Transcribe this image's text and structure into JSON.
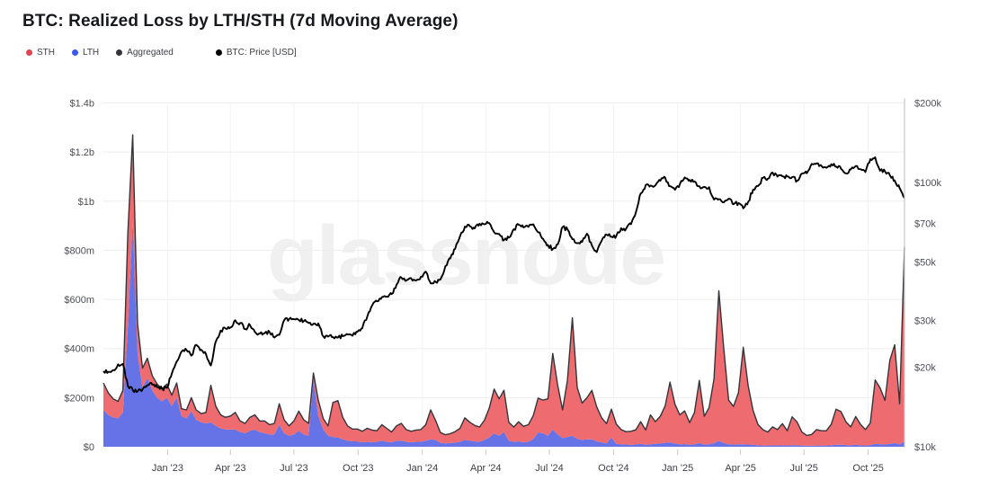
{
  "title": "BTC: Realized Loss by LTH/STH (7d Moving Average)",
  "watermark": "glassnode",
  "legend": [
    {
      "label": "STH",
      "color": "#e2444d"
    },
    {
      "label": "LTH",
      "color": "#3c58e8"
    },
    {
      "label": "Aggregated",
      "color": "#33353b"
    },
    {
      "label": "BTC: Price [USD]",
      "color": "#000000"
    }
  ],
  "chart_data": {
    "type": "area",
    "stacked": true,
    "interval": "weekly",
    "start_period": "Oct 2022",
    "end_period": "Nov 2025",
    "grid": true,
    "left_axis": {
      "title": "Realized Loss (USD)",
      "unit": "$m",
      "min": 0,
      "max": 1400,
      "ticks": [
        {
          "label": "$0",
          "value": 0
        },
        {
          "label": "$200m",
          "value": 200
        },
        {
          "label": "$400m",
          "value": 400
        },
        {
          "label": "$600m",
          "value": 600
        },
        {
          "label": "$800m",
          "value": 800
        },
        {
          "label": "$1b",
          "value": 1000
        },
        {
          "label": "$1.2b",
          "value": 1200
        },
        {
          "label": "$1.4b",
          "value": 1400
        }
      ]
    },
    "right_axis": {
      "title": "BTC: Price [USD]",
      "scale": "log",
      "unit": "$k",
      "min_k": 10,
      "max_k": 200,
      "ticks": [
        {
          "label": "$10k",
          "value_k": 10
        },
        {
          "label": "$20k",
          "value_k": 20
        },
        {
          "label": "$30k",
          "value_k": 30
        },
        {
          "label": "$50k",
          "value_k": 50
        },
        {
          "label": "$70k",
          "value_k": 70
        },
        {
          "label": "$100k",
          "value_k": 100
        },
        {
          "label": "$200k",
          "value_k": 200
        }
      ]
    },
    "x_ticks": [
      {
        "label": "Jan '23",
        "week": 13.14
      },
      {
        "label": "Apr '23",
        "week": 26.0
      },
      {
        "label": "Jul '23",
        "week": 39.0
      },
      {
        "label": "Oct '23",
        "week": 52.14
      },
      {
        "label": "Jan '24",
        "week": 65.29
      },
      {
        "label": "Apr '24",
        "week": 78.29
      },
      {
        "label": "Jul '24",
        "week": 91.29
      },
      {
        "label": "Oct '24",
        "week": 104.43
      },
      {
        "label": "Jan '25",
        "week": 117.57
      },
      {
        "label": "Apr '25",
        "week": 130.43
      },
      {
        "label": "Jul '25",
        "week": 143.43
      },
      {
        "label": "Oct '25",
        "week": 156.57
      }
    ],
    "series": [
      {
        "id": "sth",
        "name": "STH",
        "fill": "#ee6c70",
        "unit": "$m",
        "values": [
          110,
          90,
          75,
          70,
          90,
          380,
          350,
          120,
          80,
          80,
          60,
          55,
          50,
          55,
          45,
          60,
          30,
          35,
          55,
          40,
          35,
          45,
          150,
          80,
          55,
          50,
          55,
          70,
          45,
          40,
          55,
          60,
          45,
          50,
          40,
          45,
          85,
          55,
          40,
          55,
          80,
          60,
          50,
          30,
          65,
          45,
          40,
          140,
          150,
          90,
          60,
          50,
          50,
          45,
          55,
          50,
          45,
          65,
          55,
          42,
          60,
          70,
          50,
          45,
          48,
          50,
          65,
          120,
          80,
          42,
          35,
          38,
          45,
          55,
          90,
          75,
          65,
          60,
          80,
          120,
          180,
          150,
          170,
          75,
          60,
          80,
          65,
          70,
          95,
          140,
          135,
          150,
          310,
          200,
          115,
          230,
          480,
          210,
          150,
          170,
          200,
          140,
          100,
          80,
          115,
          80,
          60,
          52,
          55,
          60,
          90,
          60,
          120,
          90,
          110,
          150,
          245,
          160,
          120,
          135,
          90,
          130,
          255,
          115,
          150,
          260,
          610,
          385,
          180,
          155,
          210,
          395,
          240,
          140,
          85,
          65,
          55,
          75,
          65,
          88,
          60,
          115,
          95,
          55,
          42,
          46,
          65,
          60,
          60,
          85,
          145,
          135,
          95,
          75,
          115,
          85,
          65,
          90,
          260,
          230,
          180,
          340,
          400,
          165,
          790
        ]
      },
      {
        "id": "lth",
        "name": "LTH",
        "fill": "#6673e7",
        "unit": "$m",
        "values": [
          150,
          130,
          120,
          115,
          140,
          490,
          920,
          380,
          240,
          280,
          230,
          200,
          185,
          200,
          165,
          200,
          125,
          115,
          145,
          110,
          100,
          95,
          100,
          85,
          75,
          70,
          70,
          70,
          60,
          55,
          65,
          70,
          60,
          55,
          50,
          50,
          90,
          55,
          45,
          50,
          65,
          50,
          45,
          270,
          125,
          70,
          45,
          40,
          38,
          30,
          25,
          22,
          22,
          18,
          20,
          18,
          20,
          25,
          20,
          18,
          25,
          25,
          20,
          18,
          20,
          20,
          25,
          30,
          28,
          16,
          14,
          15,
          17,
          20,
          28,
          25,
          22,
          20,
          28,
          38,
          55,
          45,
          60,
          25,
          20,
          22,
          18,
          20,
          32,
          58,
          55,
          45,
          70,
          50,
          35,
          40,
          45,
          32,
          28,
          30,
          30,
          22,
          18,
          14,
          38,
          12,
          10,
          9,
          8,
          9,
          12,
          8,
          10,
          12,
          14,
          16,
          18,
          13,
          10,
          11,
          8,
          10,
          15,
          9,
          10,
          15,
          25,
          15,
          10,
          9,
          10,
          10,
          9,
          8,
          6,
          5,
          5,
          6,
          5,
          6,
          5,
          7,
          6,
          5,
          4,
          4,
          5,
          5,
          5,
          6,
          8,
          8,
          7,
          6,
          8,
          6,
          5,
          7,
          12,
          10,
          9,
          12,
          15,
          10,
          22
        ]
      },
      {
        "id": "agg",
        "name": "Aggregated",
        "stroke": "#33353b",
        "derived": "sum_of_sth_lth"
      },
      {
        "id": "price",
        "name": "BTC: Price [USD]",
        "stroke": "#000000",
        "axis": "right",
        "unit": "$k",
        "values": [
          19.3,
          19.2,
          19.5,
          20.5,
          20.6,
          17.0,
          16.4,
          16.2,
          16.5,
          17.1,
          17.2,
          16.8,
          16.6,
          16.7,
          18.9,
          21.0,
          22.9,
          23.2,
          22.1,
          24.3,
          23.3,
          22.4,
          20.3,
          25.0,
          27.5,
          28.0,
          28.3,
          30.1,
          29.4,
          27.9,
          28.9,
          27.2,
          26.8,
          26.9,
          27.2,
          25.9,
          26.5,
          30.1,
          30.4,
          30.4,
          30.2,
          29.9,
          29.4,
          29.2,
          29.3,
          26.2,
          26.1,
          26.0,
          25.9,
          26.2,
          26.6,
          26.3,
          27.2,
          28.1,
          31.0,
          34.2,
          35.5,
          36.8,
          37.0,
          37.8,
          41.0,
          43.7,
          42.6,
          43.4,
          42.6,
          44.0,
          46.0,
          41.5,
          42.1,
          43.0,
          48.2,
          51.5,
          56.0,
          62.5,
          68.0,
          68.3,
          67.0,
          69.8,
          69.5,
          70.2,
          64.8,
          63.9,
          60.5,
          61.8,
          66.5,
          69.2,
          67.6,
          67.9,
          69.5,
          64.8,
          61.2,
          58.0,
          56.0,
          58.3,
          67.8,
          66.5,
          61.0,
          58.9,
          59.6,
          64.0,
          57.8,
          54.5,
          60.2,
          63.5,
          62.3,
          62.8,
          67.2,
          66.8,
          69.5,
          77.0,
          90.8,
          97.7,
          97.4,
          97.5,
          101.5,
          104.2,
          96.8,
          93.8,
          98.5,
          104.5,
          102.3,
          101.0,
          96.8,
          96.2,
          96.0,
          86.2,
          86.5,
          84.1,
          86.8,
          82.7,
          83.6,
          79.8,
          84.5,
          93.9,
          96.9,
          104.0,
          103.3,
          109.1,
          105.2,
          105.5,
          105.4,
          104.8,
          101.5,
          108.1,
          108.3,
          117.6,
          118.2,
          115.7,
          113.6,
          117.2,
          114.9,
          112.6,
          108.3,
          111.9,
          115.4,
          112.3,
          109.5,
          122.5,
          124.5,
          110.8,
          110.2,
          106.5,
          101.8,
          95.2,
          87.5
        ]
      }
    ]
  }
}
